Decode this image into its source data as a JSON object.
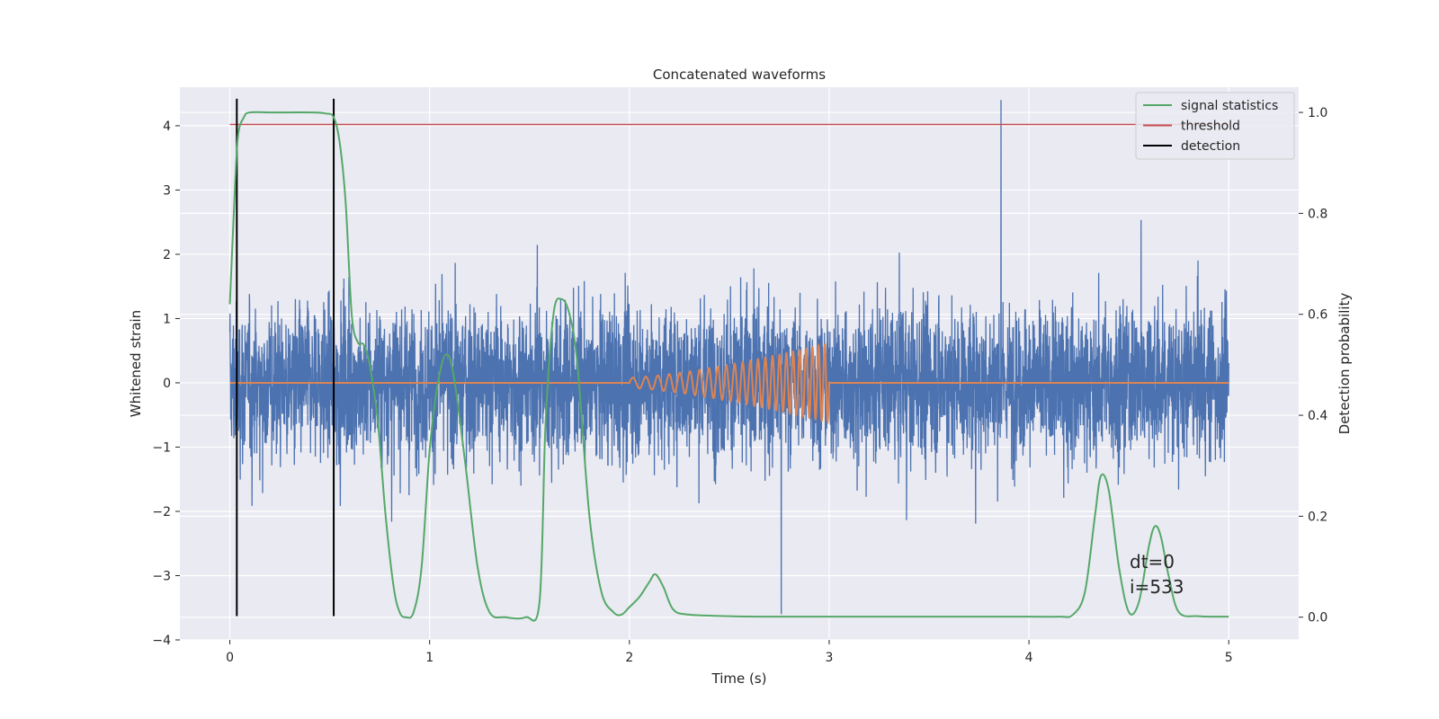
{
  "chart_data": {
    "type": "line",
    "title": "Concatenated waveforms",
    "xlabel": "Time (s)",
    "ylabel": "Whitened strain",
    "y2label": "Detection probability",
    "xlim": [
      -0.25,
      5.35
    ],
    "ylim": [
      -4.0,
      4.6
    ],
    "y2lim": [
      -0.045,
      1.05
    ],
    "xticks": [
      0,
      1,
      2,
      3,
      4,
      5
    ],
    "yticks": [
      -4,
      -3,
      -2,
      -1,
      0,
      1,
      2,
      3,
      4
    ],
    "y2ticks": [
      0.0,
      0.2,
      0.4,
      0.6,
      0.8,
      1.0
    ],
    "grid": true,
    "legend_position": "top-right",
    "colors": {
      "strain": "#4c72b0",
      "template": "#dd8452",
      "signal_statistics": "#55a868",
      "threshold": "#c44e52",
      "detection": "#000000",
      "background": "#eaeaf2",
      "grid": "#ffffff"
    },
    "series": [
      {
        "name": "",
        "axis": "left",
        "description_kind": "noise",
        "x_range": [
          0,
          5
        ],
        "typical_peak": 2.3,
        "max": 4.4,
        "min": -3.6
      },
      {
        "name": "",
        "axis": "left",
        "description_kind": "chirp",
        "x_range": [
          2.0,
          3.0
        ],
        "amplitude_start": 0.08,
        "amplitude_end": 0.62,
        "cycles": 24
      },
      {
        "name": "signal statistics",
        "axis": "right",
        "x": [
          0.0,
          0.02,
          0.04,
          0.07,
          0.1,
          0.2,
          0.3,
          0.4,
          0.48,
          0.52,
          0.55,
          0.58,
          0.61,
          0.64,
          0.67,
          0.7,
          0.74,
          0.78,
          0.82,
          0.85,
          0.88,
          0.92,
          0.96,
          1.0,
          1.04,
          1.08,
          1.12,
          1.18,
          1.24,
          1.3,
          1.38,
          1.48,
          1.55,
          1.58,
          1.62,
          1.66,
          1.7,
          1.74,
          1.8,
          1.86,
          1.92,
          1.96,
          2.0,
          2.05,
          2.1,
          2.13,
          2.17,
          2.22,
          2.3,
          2.5,
          2.7,
          3.0,
          3.5,
          4.0,
          4.15,
          4.22,
          4.28,
          4.33,
          4.36,
          4.4,
          4.45,
          4.5,
          4.55,
          4.6,
          4.63,
          4.66,
          4.7,
          4.75,
          4.85,
          5.0
        ],
        "values": [
          0.62,
          0.8,
          0.95,
          0.99,
          1.0,
          1.0,
          1.0,
          1.0,
          0.998,
          0.99,
          0.94,
          0.82,
          0.6,
          0.545,
          0.54,
          0.5,
          0.39,
          0.2,
          0.06,
          0.01,
          0.0,
          0.01,
          0.1,
          0.33,
          0.46,
          0.52,
          0.48,
          0.3,
          0.1,
          0.01,
          0.0,
          0.0,
          0.03,
          0.38,
          0.6,
          0.63,
          0.6,
          0.5,
          0.2,
          0.05,
          0.01,
          0.005,
          0.02,
          0.04,
          0.07,
          0.085,
          0.06,
          0.015,
          0.005,
          0.002,
          0.001,
          0.001,
          0.001,
          0.001,
          0.001,
          0.005,
          0.05,
          0.2,
          0.28,
          0.25,
          0.1,
          0.01,
          0.03,
          0.14,
          0.18,
          0.16,
          0.08,
          0.01,
          0.002,
          0.001
        ]
      },
      {
        "name": "threshold",
        "axis": "left",
        "x": [
          0,
          5
        ],
        "values": [
          4.02,
          4.02
        ]
      },
      {
        "name": "detection",
        "axis": "left",
        "vlines": [
          0.035,
          0.52
        ],
        "ymin": -3.63,
        "ymax": 4.42
      }
    ],
    "annotations": [
      "dt=0",
      "i=533"
    ]
  }
}
